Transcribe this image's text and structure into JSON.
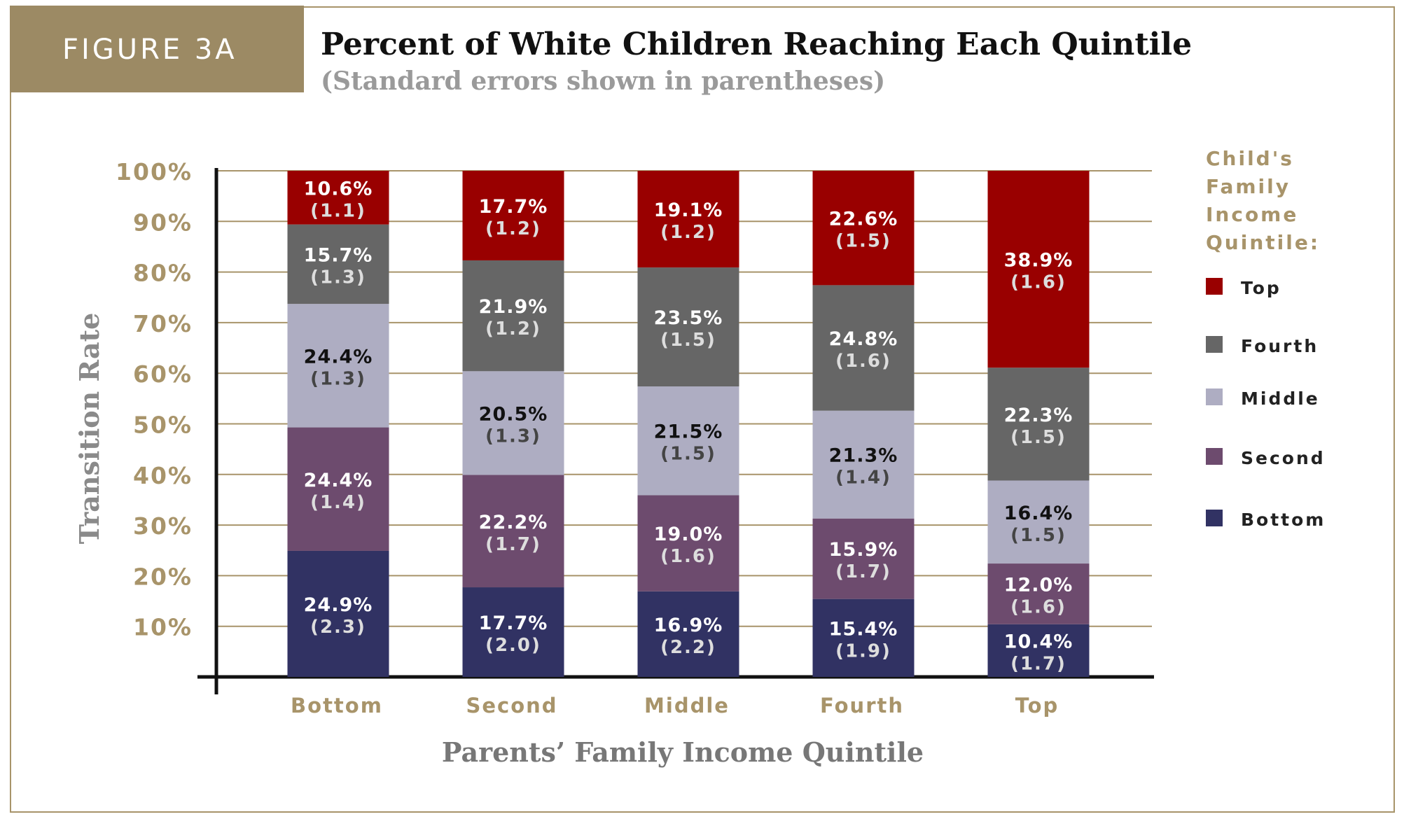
{
  "figure_label": "FIGURE 3A",
  "title": "Percent of White Children Reaching Each Quintile",
  "subtitle": "(Standard errors shown in parentheses)",
  "colors": {
    "frame": "#a8946a",
    "tick_text": "#a8946a",
    "Top": "#990000",
    "Fourth": "#666666",
    "Middle": "#aeadc2",
    "Second": "#6d4b6e",
    "Bottom": "#313263"
  },
  "chart_data": {
    "type": "bar",
    "stacked": true,
    "title": "Percent of White Children Reaching Each Quintile",
    "subtitle": "(Standard errors shown in parentheses)",
    "xlabel": "Parents’ Family Income Quintile",
    "ylabel": "Transition Rate",
    "ylim": [
      0,
      100
    ],
    "yticks": [
      "10%",
      "20%",
      "30%",
      "40%",
      "50%",
      "60%",
      "70%",
      "80%",
      "90%",
      "100%"
    ],
    "grid": true,
    "legend_title": [
      "Child's",
      "Family",
      "Income",
      "Quintile:"
    ],
    "legend_position": "right",
    "categories": [
      "Bottom",
      "Second",
      "Middle",
      "Fourth",
      "Top"
    ],
    "series": [
      {
        "name": "Bottom",
        "values": [
          24.9,
          17.7,
          16.9,
          15.4,
          10.4
        ],
        "labels": [
          "24.9%",
          "17.7%",
          "16.9%",
          "15.4%",
          "10.4%"
        ],
        "errors": [
          "(2.3)",
          "(2.0)",
          "(2.2)",
          "(1.9)",
          "(1.7)"
        ]
      },
      {
        "name": "Second",
        "values": [
          24.4,
          22.2,
          19.0,
          15.9,
          12.0
        ],
        "labels": [
          "24.4%",
          "22.2%",
          "19.0%",
          "15.9%",
          "12.0%"
        ],
        "errors": [
          "(1.4)",
          "(1.7)",
          "(1.6)",
          "(1.7)",
          "(1.6)"
        ]
      },
      {
        "name": "Middle",
        "values": [
          24.4,
          20.5,
          21.5,
          21.3,
          16.4
        ],
        "labels": [
          "24.4%",
          "20.5%",
          "21.5%",
          "21.3%",
          "16.4%"
        ],
        "errors": [
          "(1.3)",
          "(1.3)",
          "(1.5)",
          "(1.4)",
          "(1.5)"
        ]
      },
      {
        "name": "Fourth",
        "values": [
          15.7,
          21.9,
          23.5,
          24.8,
          22.3
        ],
        "labels": [
          "15.7%",
          "21.9%",
          "23.5%",
          "24.8%",
          "22.3%"
        ],
        "errors": [
          "(1.3)",
          "(1.2)",
          "(1.5)",
          "(1.6)",
          "(1.5)"
        ]
      },
      {
        "name": "Top",
        "values": [
          10.6,
          17.7,
          19.1,
          22.6,
          38.9
        ],
        "labels": [
          "10.6%",
          "17.7%",
          "19.1%",
          "22.6%",
          "38.9%"
        ],
        "errors": [
          "(1.1)",
          "(1.2)",
          "(1.2)",
          "(1.5)",
          "(1.6)"
        ]
      }
    ]
  }
}
